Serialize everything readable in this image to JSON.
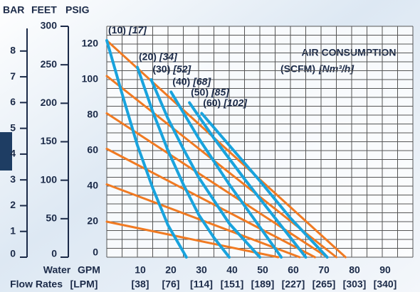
{
  "chart_data": {
    "type": "line",
    "headers": [
      "BAR",
      "FEET",
      "PSIG"
    ],
    "annotation": {
      "title": "AIR CONSUMPTION",
      "unit": "(SCFM)",
      "unit_metric": "[Nm³/h]"
    },
    "x_label": [
      "Water",
      "Flow Rates"
    ],
    "x_unit": "GPM",
    "x_unit_metric": "[LPM]",
    "xlim": [
      0,
      100
    ],
    "xticks": [
      10,
      20,
      30,
      40,
      50,
      60,
      70,
      80,
      90
    ],
    "xticks_metric": [
      "[38]",
      "[76]",
      "[114]",
      "[151]",
      "[189]",
      "[227]",
      "[265]",
      "[303]",
      "[340]"
    ],
    "x_grid": [
      0,
      5,
      10,
      15,
      20,
      25,
      30,
      35,
      40,
      45,
      50,
      55,
      60,
      65,
      70,
      75,
      80,
      85,
      90,
      95,
      100
    ],
    "ylim": [
      0,
      130
    ],
    "yticks": [
      0,
      20,
      40,
      60,
      80,
      100,
      120
    ],
    "y_grid": [
      0,
      5,
      10,
      15,
      20,
      25,
      30,
      35,
      40,
      45,
      50,
      55,
      60,
      65,
      70,
      75,
      80,
      85,
      90,
      95,
      100,
      105,
      110,
      115,
      120,
      125,
      130
    ],
    "feet_lim": [
      0,
      300
    ],
    "feet_ticks": [
      0,
      50,
      100,
      150,
      200,
      250,
      300
    ],
    "bar_lim": [
      0,
      8.96
    ],
    "bar_ticks": [
      0,
      1,
      2,
      3,
      4,
      5,
      6,
      7,
      8
    ],
    "grid": true,
    "series": [
      {
        "color": "#f07a22",
        "x": [
          0,
          78
        ],
        "values": [
          122,
          0
        ]
      },
      {
        "color": "#f07a22",
        "x": [
          0,
          75
        ],
        "values": [
          102,
          0
        ]
      },
      {
        "color": "#f07a22",
        "x": [
          0,
          72
        ],
        "values": [
          81,
          0
        ]
      },
      {
        "color": "#f07a22",
        "x": [
          0,
          68
        ],
        "values": [
          61,
          0
        ]
      },
      {
        "color": "#f07a22",
        "x": [
          0,
          63
        ],
        "values": [
          41,
          0
        ]
      },
      {
        "color": "#f07a22",
        "x": [
          0,
          56
        ],
        "values": [
          20,
          0
        ]
      },
      {
        "label": "(10)",
        "label_metric": "[17]",
        "color": "#19a3dd",
        "x": [
          0,
          5,
          10,
          15,
          20,
          26
        ],
        "values": [
          122,
          92,
          63,
          39,
          18,
          0
        ]
      },
      {
        "label": "(20)",
        "label_metric": "[34]",
        "color": "#19a3dd",
        "x": [
          10,
          15,
          20,
          25,
          30,
          35,
          40
        ],
        "values": [
          107,
          82,
          60,
          41,
          24,
          11,
          0
        ]
      },
      {
        "label": "(30)",
        "label_metric": "[52]",
        "color": "#19a3dd",
        "x": [
          14.5,
          20,
          25,
          30,
          40,
          50
        ],
        "values": [
          100,
          78,
          61,
          45,
          19,
          0
        ]
      },
      {
        "label": "(40)",
        "label_metric": "[68]",
        "color": "#19a3dd",
        "x": [
          21,
          30,
          40,
          50,
          57
        ],
        "values": [
          93,
          67,
          41,
          17,
          0
        ]
      },
      {
        "label": "(50)",
        "label_metric": "[85]",
        "color": "#19a3dd",
        "x": [
          27,
          35,
          45,
          55,
          65
        ],
        "values": [
          87,
          67,
          44,
          22,
          0
        ]
      },
      {
        "label": "(60)",
        "label_metric": "[102]",
        "color": "#19a3dd",
        "x": [
          31,
          40,
          50,
          60,
          72
        ],
        "values": [
          81,
          63,
          43,
          22,
          0
        ]
      }
    ]
  }
}
